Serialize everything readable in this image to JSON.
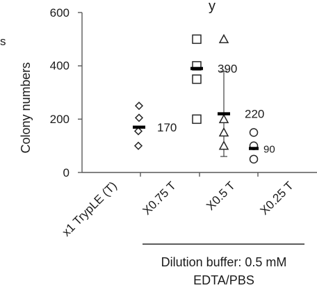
{
  "chart_data": {
    "type": "scatter",
    "title": "y",
    "ylabel": "Colony numbers",
    "left_cut_text": "s",
    "ylim": [
      0,
      600
    ],
    "yticks": [
      "0",
      "200",
      "400",
      "600"
    ],
    "grid": false,
    "categories": [
      "x1 TrypLE (T)",
      "X0.75 T",
      "X0.5 T",
      "X0.25 T"
    ],
    "groups": [
      {
        "category": "x1 TrypLE (T)",
        "marker": "diamond",
        "points": [
          250,
          205,
          155,
          100
        ],
        "mean": 170,
        "error": [
          null,
          null
        ],
        "label": "170"
      },
      {
        "category": "X0.75 T",
        "marker": "square",
        "points": [
          500,
          400,
          350,
          200
        ],
        "mean": 390,
        "error": [
          null,
          null
        ],
        "label": "390"
      },
      {
        "category": "X0.5 T",
        "marker": "triangle",
        "points": [
          500,
          200,
          150,
          100
        ],
        "mean": 220,
        "error": [
          60,
          380
        ],
        "label": "220"
      },
      {
        "category": "X0.25 T",
        "marker": "circle",
        "points": [
          150,
          100,
          50
        ],
        "mean": 90,
        "error": [
          null,
          null
        ],
        "label": "90"
      }
    ],
    "bracket_label_line1": "Dilution buffer: 0.5 mM",
    "bracket_label_line2": "EDTA/PBS"
  }
}
